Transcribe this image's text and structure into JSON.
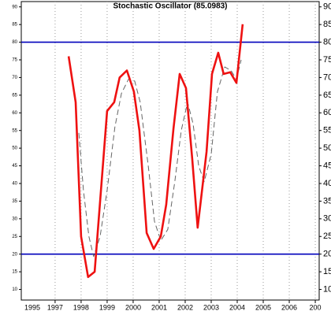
{
  "chart_data": {
    "type": "line",
    "title": "Stochastic Oscillator (85.0983)",
    "xlim": [
      1995.7,
      2007.15
    ],
    "xticks": [
      1995,
      1997,
      1998,
      1999,
      2000,
      2001,
      2002,
      2003,
      2004,
      2005,
      2006,
      {
        "value": 2007,
        "label": "200"
      }
    ],
    "ylim": [
      7,
      91.5
    ],
    "yticks": [
      10,
      15,
      20,
      25,
      30,
      35,
      40,
      45,
      50,
      55,
      60,
      65,
      70,
      75,
      80,
      85,
      90
    ],
    "grid": true,
    "reference_lines": [
      {
        "value": 80,
        "color": "#0000bb"
      },
      {
        "value": 20,
        "color": "#0000bb"
      }
    ],
    "series": [
      {
        "color": "#ee1111",
        "style": "solid",
        "x": [
          1997.52,
          1997.79,
          1998.0,
          1998.27,
          1998.52,
          1999.0,
          1999.27,
          1999.48,
          1999.76,
          2000.03,
          2000.24,
          2000.52,
          2000.79,
          2001.06,
          2001.27,
          2001.55,
          2001.79,
          2002.03,
          2002.27,
          2002.48,
          2002.82,
          2003.03,
          2003.27,
          2003.48,
          2003.73,
          2003.97,
          2004.21
        ],
        "values": [
          76,
          63,
          25,
          13.5,
          15,
          60.5,
          63,
          70,
          72,
          66,
          55,
          26,
          21.5,
          25,
          34,
          55.5,
          71,
          67,
          47,
          27.5,
          49,
          71,
          77,
          71,
          71.5,
          68.5,
          85.1
        ]
      },
      {
        "color": "#666666",
        "style": "dashed",
        "x": [
          1997.91,
          1998.09,
          1998.3,
          1998.48,
          1998.73,
          1999.0,
          1999.3,
          1999.55,
          1999.82,
          2000.06,
          2000.27,
          2000.58,
          2000.82,
          2001.06,
          2001.33,
          2001.6,
          2001.85,
          2002.09,
          2002.3,
          2002.52,
          2002.73,
          2003.0,
          2003.24,
          2003.52,
          2003.76,
          2003.97,
          2004.15
        ],
        "values": [
          54.3,
          38,
          25,
          19.3,
          25,
          38,
          56,
          65.5,
          69.5,
          69,
          63,
          45,
          29.3,
          23.8,
          27,
          40.5,
          55,
          63,
          57,
          45,
          40.5,
          48.3,
          66,
          73,
          72,
          69.5,
          75
        ]
      }
    ]
  }
}
